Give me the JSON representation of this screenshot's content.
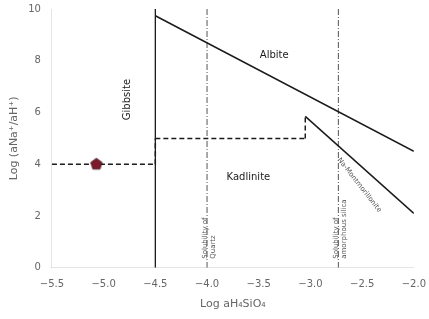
{
  "chart_data": {
    "type": "line",
    "x_label": "Log aH₄SiO₄",
    "y_label": "Log (aNa⁺/aH⁺)",
    "xlim": [
      -5.5,
      -2.0
    ],
    "ylim": [
      0,
      10
    ],
    "xticks": [
      {
        "value": -5.5,
        "label": "−5.5"
      },
      {
        "value": -5.0,
        "label": "−5.0"
      },
      {
        "value": -4.5,
        "label": "−4.5"
      },
      {
        "value": -4.0,
        "label": "−4.0"
      },
      {
        "value": -3.5,
        "label": "−3.5"
      },
      {
        "value": -3.0,
        "label": "−3.0"
      },
      {
        "value": -2.5,
        "label": "−2.5"
      },
      {
        "value": -2.0,
        "label": "−2.0"
      }
    ],
    "yticks": [
      0,
      2,
      4,
      6,
      8,
      10
    ],
    "grid": false,
    "vlines": [
      {
        "x": -4.5,
        "color": "#1a1a1a",
        "line_style": "solid"
      },
      {
        "x": -4.0,
        "color": "#555555",
        "line_style": "dashdot"
      },
      {
        "x": -2.73,
        "color": "#555555",
        "line_style": "dashdot"
      }
    ],
    "series": [
      {
        "x": [
          -4.5,
          -2.0
        ],
        "values": [
          9.74,
          4.5
        ],
        "color": "#1a1a1a",
        "line_style": "solid"
      },
      {
        "x": [
          -3.05,
          -2.0
        ],
        "values": [
          5.85,
          2.1
        ],
        "color": "#1a1a1a",
        "line_style": "solid"
      },
      {
        "x": [
          -5.5,
          -4.5
        ],
        "values": [
          4.0,
          4.0
        ],
        "color": "#1a1a1a",
        "line_style": "dashed"
      },
      {
        "x": [
          -4.5,
          -4.5
        ],
        "values": [
          4.0,
          5.0
        ],
        "color": "#1a1a1a",
        "line_style": "dashed"
      },
      {
        "x": [
          -4.5,
          -3.05
        ],
        "values": [
          5.0,
          5.0
        ],
        "color": "#1a1a1a",
        "line_style": "dashed"
      },
      {
        "x": [
          -3.05,
          -3.05
        ],
        "values": [
          5.0,
          5.85
        ],
        "color": "#1a1a1a",
        "line_style": "dashed"
      },
      {
        "x": [
          -5.07
        ],
        "values": [
          4.0
        ],
        "color": "#7B1A2A",
        "marker": "pentagon"
      }
    ],
    "annotations": [
      {
        "text": "Albite",
        "x": -3.35,
        "y": 8.2,
        "color": "#1a1a1a"
      },
      {
        "text": "Gibbsite",
        "x": -4.77,
        "y": 6.5,
        "color": "#1a1a1a"
      },
      {
        "text": "Kadlinite",
        "x": -3.6,
        "y": 3.5,
        "color": "#1a1a1a"
      },
      {
        "text": "Na-Montmorillonite",
        "x": -2.7,
        "y": 4.3,
        "color": "#555555"
      },
      {
        "text": "Solubility of\nQuartz",
        "x": -3.98,
        "y": 0.35,
        "color": "#555555"
      },
      {
        "text": "Solubility of\namorphous silica",
        "x": -2.71,
        "y": 0.35,
        "color": "#555555"
      }
    ]
  }
}
